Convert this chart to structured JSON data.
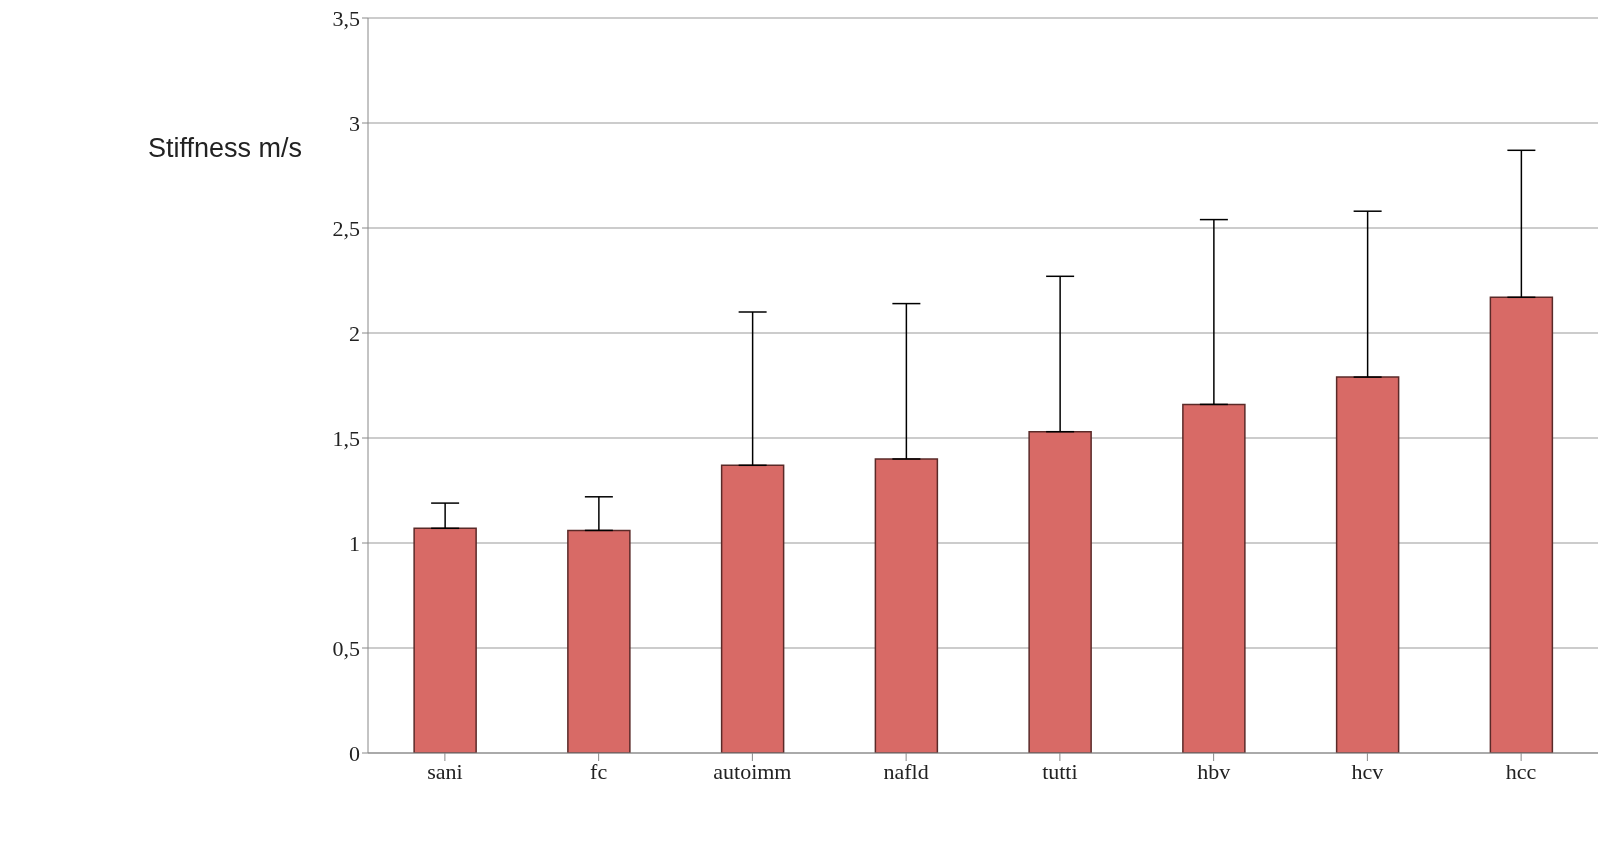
{
  "chart_data": {
    "type": "bar",
    "ylabel": "Stiffness m/s",
    "categories": [
      "sani",
      "fc",
      "autoimm",
      "nafld",
      "tutti",
      "hbv",
      "hcv",
      "hcc"
    ],
    "values": [
      1.07,
      1.06,
      1.37,
      1.4,
      1.53,
      1.66,
      1.79,
      2.17
    ],
    "errors": [
      [
        1.07,
        1.19
      ],
      [
        1.06,
        1.22
      ],
      [
        1.37,
        2.1
      ],
      [
        1.4,
        2.14
      ],
      [
        1.53,
        2.27
      ],
      [
        1.66,
        2.54
      ],
      [
        1.79,
        2.58
      ],
      [
        2.17,
        2.87
      ]
    ],
    "color": "#d86a66",
    "ylim": [
      0,
      3.5
    ],
    "yticks": [
      0,
      {
        "value": 0.5,
        "label": "0,5"
      },
      1,
      {
        "value": 1.5,
        "label": "1,5"
      },
      2,
      {
        "value": 2.5,
        "label": "2,5"
      },
      3,
      {
        "value": 3.5,
        "label": "3,5"
      }
    ],
    "grid": "y",
    "legend": false
  }
}
